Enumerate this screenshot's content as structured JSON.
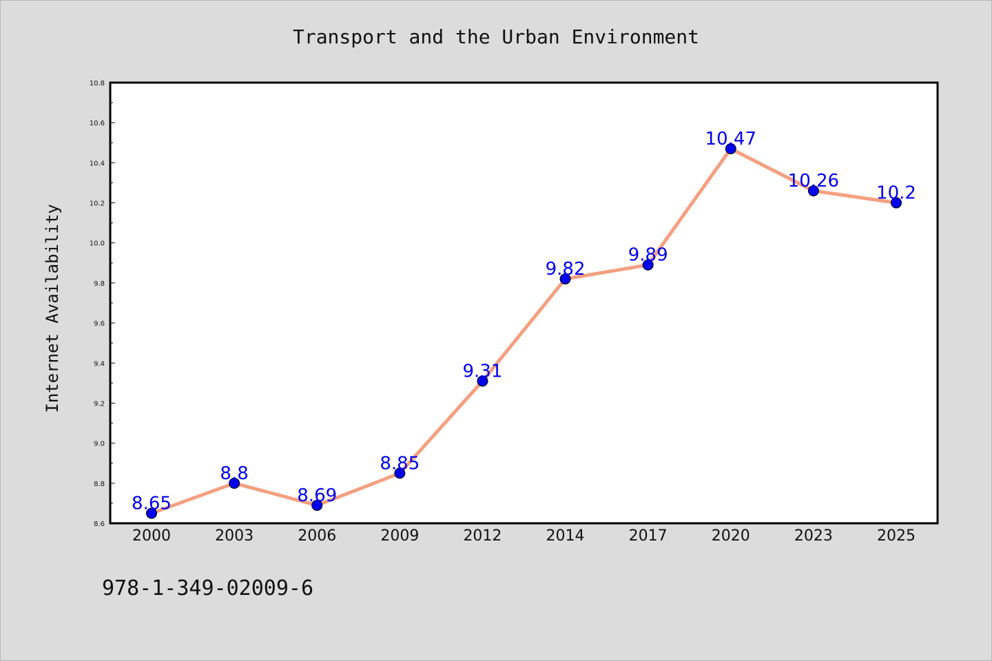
{
  "chart_data": {
    "type": "line",
    "title": "Transport and the Urban Environment",
    "ylabel": "Internet Availability",
    "xlabel": "",
    "categories": [
      "2000",
      "2003",
      "2006",
      "2009",
      "2012",
      "2014",
      "2017",
      "2020",
      "2023",
      "2025"
    ],
    "series": [
      {
        "values": [
          8.65,
          8.8,
          8.69,
          8.85,
          9.31,
          9.82,
          9.89,
          10.47,
          10.26,
          10.2
        ],
        "data_labels": [
          "8.65",
          "8.8",
          "8.69",
          "8.85",
          "9.31",
          "9.82",
          "9.89",
          "10.47",
          "10.26",
          "10.2"
        ]
      }
    ],
    "ylim": [
      8.6,
      10.8
    ],
    "yticks": [
      "8.6",
      "8.8",
      "9.0",
      "9.2",
      "9.4",
      "9.6",
      "9.8",
      "10.0",
      "10.2",
      "10.4",
      "10.6",
      "10.8"
    ],
    "grid": false,
    "colors": {
      "line": "#f4a080",
      "marker": "#0000ee",
      "label": "#0000ee",
      "plot_background": "#ffffff",
      "figure_background": "#dcdcdc"
    }
  },
  "footer": {
    "isbn": "978-1-349-02009-6"
  }
}
